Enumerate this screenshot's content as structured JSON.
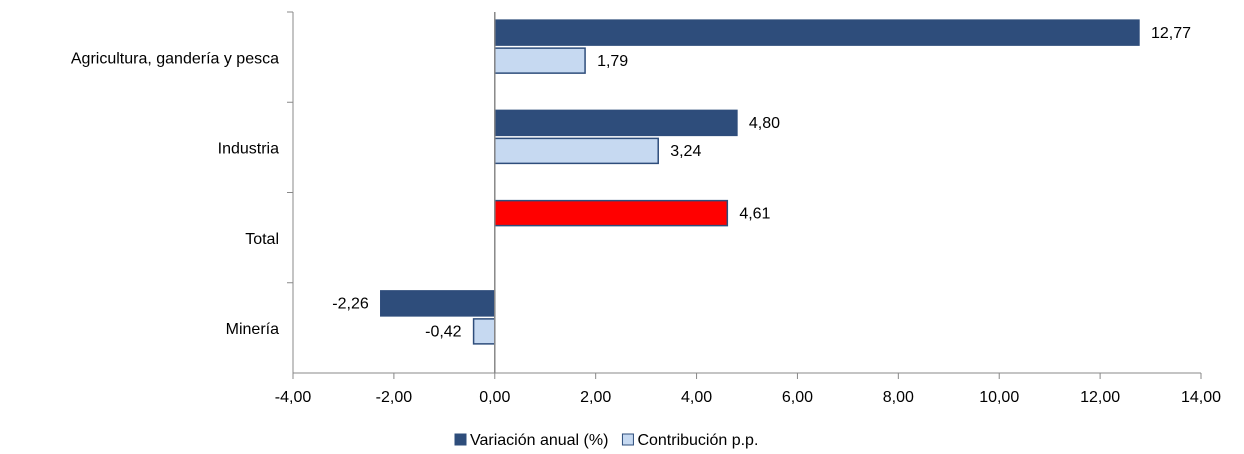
{
  "chart_data": {
    "type": "hbar",
    "categories": [
      "Agricultura, gandería y pesca",
      "Industria",
      "Total",
      "Minería"
    ],
    "series": [
      {
        "name": "Variación anual (%)",
        "color": "#2e4d7b",
        "colors": [
          "#2e4d7b",
          "#2e4d7b",
          "#ff0000",
          "#2e4d7b"
        ],
        "values": [
          12.77,
          4.8,
          4.61,
          -2.26
        ],
        "value_labels": [
          "12,77",
          "4,80",
          "4,61",
          "-2,26"
        ]
      },
      {
        "name": "Contribución p.p.",
        "color": "#c6d9f1",
        "values": [
          1.79,
          3.24,
          null,
          -0.42
        ],
        "value_labels": [
          "1,79",
          "3,24",
          null,
          "-0,42"
        ]
      }
    ],
    "xlim": [
      -4,
      14
    ],
    "xticks": [
      {
        "value": -4,
        "label": "-4,00"
      },
      {
        "value": -2,
        "label": "-2,00"
      },
      {
        "value": 0,
        "label": "0,00"
      },
      {
        "value": 2,
        "label": "2,00"
      },
      {
        "value": 4,
        "label": "4,00"
      },
      {
        "value": 6,
        "label": "6,00"
      },
      {
        "value": 8,
        "label": "8,00"
      },
      {
        "value": 10,
        "label": "10,00"
      },
      {
        "value": 12,
        "label": "12,00"
      },
      {
        "value": 14,
        "label": "14,00"
      }
    ],
    "legend": "bottom"
  }
}
